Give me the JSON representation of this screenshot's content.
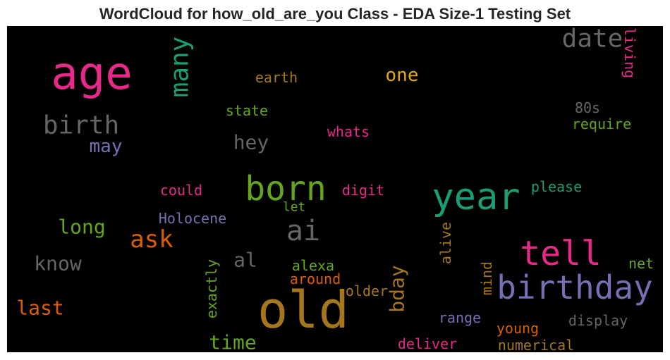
{
  "chart_data": {
    "type": "wordcloud",
    "title": "WordCloud for how_old_are_you Class - EDA Size-1 Testing Set",
    "background": "#000000",
    "words": [
      {
        "text": "age",
        "color": "#e7298a"
      },
      {
        "text": "old",
        "color": "#a6761d"
      },
      {
        "text": "birthday",
        "color": "#7570b3"
      },
      {
        "text": "tell",
        "color": "#e7298a"
      },
      {
        "text": "year",
        "color": "#1b9e77"
      },
      {
        "text": "born",
        "color": "#66a61e"
      },
      {
        "text": "ai",
        "color": "#666666"
      },
      {
        "text": "birth",
        "color": "#666666"
      },
      {
        "text": "many",
        "color": "#1b9e77"
      },
      {
        "text": "date",
        "color": "#666666"
      },
      {
        "text": "living",
        "color": "#e7298a"
      },
      {
        "text": "earth",
        "color": "#a6761d"
      },
      {
        "text": "one",
        "color": "#e6ab02"
      },
      {
        "text": "state",
        "color": "#66a61e"
      },
      {
        "text": "80s",
        "color": "#666666"
      },
      {
        "text": "require",
        "color": "#66a61e"
      },
      {
        "text": "whats",
        "color": "#e7298a"
      },
      {
        "text": "hey",
        "color": "#666666"
      },
      {
        "text": "may",
        "color": "#7570b3"
      },
      {
        "text": "could",
        "color": "#e7298a"
      },
      {
        "text": "digit",
        "color": "#e7298a"
      },
      {
        "text": "please",
        "color": "#1b9e77"
      },
      {
        "text": "let",
        "color": "#66a61e"
      },
      {
        "text": "Holocene",
        "color": "#7570b3"
      },
      {
        "text": "long",
        "color": "#66a61e"
      },
      {
        "text": "ask",
        "color": "#d95f02"
      },
      {
        "text": "alive",
        "color": "#a6761d"
      },
      {
        "text": "know",
        "color": "#666666"
      },
      {
        "text": "al",
        "color": "#666666"
      },
      {
        "text": "alexa",
        "color": "#66a61e"
      },
      {
        "text": "net",
        "color": "#66a61e"
      },
      {
        "text": "mind",
        "color": "#a6761d"
      },
      {
        "text": "around",
        "color": "#d95f02"
      },
      {
        "text": "exactly",
        "color": "#66a61e"
      },
      {
        "text": "older",
        "color": "#a6761d"
      },
      {
        "text": "bday",
        "color": "#a6761d"
      },
      {
        "text": "last",
        "color": "#d95f02"
      },
      {
        "text": "range",
        "color": "#7570b3"
      },
      {
        "text": "display",
        "color": "#666666"
      },
      {
        "text": "young",
        "color": "#d95f02"
      },
      {
        "text": "time",
        "color": "#66a61e"
      },
      {
        "text": "deliver",
        "color": "#e7298a"
      },
      {
        "text": "numerical",
        "color": "#a6761d"
      }
    ]
  }
}
